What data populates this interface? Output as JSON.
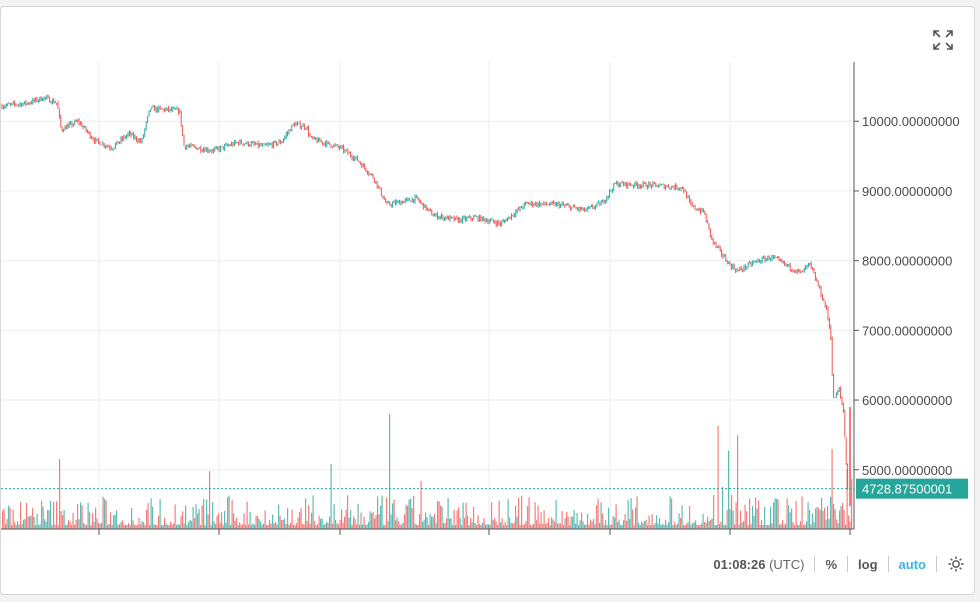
{
  "chart_data": {
    "type": "candlestick-with-volume",
    "y_axis": {
      "ticks": [
        {
          "value": 5000,
          "label": "5000.00000000"
        },
        {
          "value": 6000,
          "label": "6000.00000000"
        },
        {
          "value": 7000,
          "label": "7000.00000000"
        },
        {
          "value": 8000,
          "label": "8000.00000000"
        },
        {
          "value": 9000,
          "label": "9000.00000000"
        },
        {
          "value": 10000,
          "label": "10000.00000000"
        }
      ],
      "range": [
        4150,
        10850
      ]
    },
    "last_price": {
      "value": 4728.875,
      "label": "4728.87500001"
    },
    "price_path": [
      [
        0,
        10220
      ],
      [
        0.03,
        10260
      ],
      [
        0.05,
        10340
      ],
      [
        0.065,
        10260
      ],
      [
        0.07,
        9880
      ],
      [
        0.09,
        10000
      ],
      [
        0.11,
        9720
      ],
      [
        0.13,
        9620
      ],
      [
        0.15,
        9820
      ],
      [
        0.165,
        9700
      ],
      [
        0.175,
        10180
      ],
      [
        0.21,
        10150
      ],
      [
        0.215,
        9650
      ],
      [
        0.25,
        9580
      ],
      [
        0.28,
        9700
      ],
      [
        0.31,
        9640
      ],
      [
        0.33,
        9700
      ],
      [
        0.345,
        9960
      ],
      [
        0.36,
        9920
      ],
      [
        0.365,
        9750
      ],
      [
        0.4,
        9620
      ],
      [
        0.42,
        9450
      ],
      [
        0.44,
        9180
      ],
      [
        0.455,
        8800
      ],
      [
        0.49,
        8890
      ],
      [
        0.51,
        8650
      ],
      [
        0.54,
        8580
      ],
      [
        0.56,
        8620
      ],
      [
        0.59,
        8530
      ],
      [
        0.62,
        8820
      ],
      [
        0.66,
        8800
      ],
      [
        0.69,
        8720
      ],
      [
        0.71,
        8830
      ],
      [
        0.725,
        9100
      ],
      [
        0.77,
        9080
      ],
      [
        0.805,
        9050
      ],
      [
        0.815,
        8780
      ],
      [
        0.83,
        8700
      ],
      [
        0.84,
        8280
      ],
      [
        0.86,
        7950
      ],
      [
        0.87,
        7850
      ],
      [
        0.89,
        7980
      ],
      [
        0.91,
        8050
      ],
      [
        0.925,
        7950
      ],
      [
        0.945,
        7820
      ],
      [
        0.955,
        7950
      ],
      [
        0.965,
        7650
      ],
      [
        0.975,
        7300
      ],
      [
        0.98,
        6950
      ],
      [
        0.983,
        6000
      ],
      [
        0.99,
        6150
      ],
      [
        0.995,
        5850
      ],
      [
        1.0,
        4728.875
      ]
    ],
    "colors": {
      "up": "#26a69a",
      "down": "#ef5350",
      "grid": "#e8eef2",
      "axis": "#555555",
      "last_price": "#26a69a"
    }
  },
  "toolbar": {
    "time": "01:08:26",
    "timezone": "(UTC)",
    "percent": "%",
    "log": "log",
    "auto": "auto"
  },
  "icons": {
    "fullscreen": "expand-icon",
    "settings": "gear-icon"
  }
}
